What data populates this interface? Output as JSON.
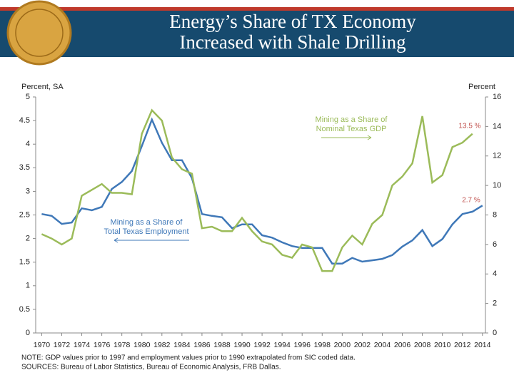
{
  "chart_data": {
    "type": "line",
    "title": [
      "Energy’s Share of TX Economy",
      "Increased with Shale Drilling"
    ],
    "ylabel": "Percent, SA",
    "y2label": "Percent",
    "xlim": [
      1969.4,
      2014.3
    ],
    "xticks": [
      1970,
      1972,
      1974,
      1976,
      1978,
      1980,
      1982,
      1984,
      1986,
      1988,
      1990,
      1992,
      1994,
      1996,
      1998,
      2000,
      2002,
      2004,
      2006,
      2008,
      2010,
      2012,
      2014
    ],
    "ylim": [
      0,
      5
    ],
    "yticks": [
      0,
      0.5,
      1,
      1.5,
      2,
      2.5,
      3,
      3.5,
      4,
      4.5,
      5
    ],
    "y2lim": [
      0,
      16
    ],
    "y2ticks": [
      0,
      2,
      4,
      6,
      8,
      10,
      12,
      14,
      16
    ],
    "series": [
      {
        "name": [
          "Mining as a Share of",
          "Total Texas Employment"
        ],
        "color": "#3f78b8",
        "axis": "y",
        "x": [
          1970,
          1971,
          1972,
          1973,
          1974,
          1975,
          1976,
          1977,
          1978,
          1979,
          1980,
          1981,
          1982,
          1983,
          1984,
          1985,
          1986,
          1987,
          1988,
          1989,
          1990,
          1991,
          1992,
          1993,
          1994,
          1995,
          1996,
          1997,
          1998,
          1999,
          2000,
          2001,
          2002,
          2003,
          2004,
          2005,
          2006,
          2007,
          2008,
          2009,
          2010,
          2011,
          2012,
          2013,
          2014
        ],
        "values": [
          2.52,
          2.48,
          2.31,
          2.34,
          2.64,
          2.6,
          2.67,
          3.05,
          3.2,
          3.43,
          3.96,
          4.52,
          4.03,
          3.66,
          3.66,
          3.28,
          2.52,
          2.48,
          2.45,
          2.22,
          2.3,
          2.3,
          2.07,
          2.02,
          1.92,
          1.84,
          1.8,
          1.8,
          1.8,
          1.47,
          1.47,
          1.59,
          1.51,
          1.54,
          1.57,
          1.65,
          1.83,
          1.96,
          2.18,
          1.84,
          1.99,
          2.3,
          2.52,
          2.57,
          2.7
        ]
      },
      {
        "name": [
          "Mining as a Share of",
          "Nominal Texas GDP"
        ],
        "color": "#9bbb59",
        "axis": "y2",
        "x": [
          1970,
          1971,
          1972,
          1973,
          1974,
          1975,
          1976,
          1977,
          1978,
          1979,
          1980,
          1981,
          1982,
          1983,
          1984,
          1985,
          1986,
          1987,
          1988,
          1989,
          1990,
          1991,
          1992,
          1993,
          1994,
          1995,
          1996,
          1997,
          1998,
          1999,
          2000,
          2001,
          2002,
          2003,
          2004,
          2005,
          2006,
          2007,
          2008,
          2009,
          2010,
          2011,
          2012,
          2013
        ],
        "values": [
          6.7,
          6.4,
          6.0,
          6.4,
          9.3,
          9.7,
          10.1,
          9.5,
          9.5,
          9.4,
          13.5,
          15.1,
          14.4,
          11.9,
          11.1,
          10.8,
          7.1,
          7.2,
          6.9,
          6.9,
          7.8,
          6.9,
          6.2,
          6.0,
          5.3,
          5.1,
          6.0,
          5.8,
          4.2,
          4.2,
          5.8,
          6.6,
          6.0,
          7.4,
          8.0,
          10.0,
          10.6,
          11.5,
          14.7,
          10.2,
          10.7,
          12.6,
          12.9,
          13.5
        ]
      }
    ],
    "annotations": [
      "13.5 %",
      "2.7 %"
    ],
    "note": "NOTE: GDP values prior to 1997 and employment values prior to 1990 extrapolated from SIC coded data.",
    "sources": "SOURCES: Bureau of Labor Statistics, Bureau of Economic Analysis, FRB Dallas."
  }
}
